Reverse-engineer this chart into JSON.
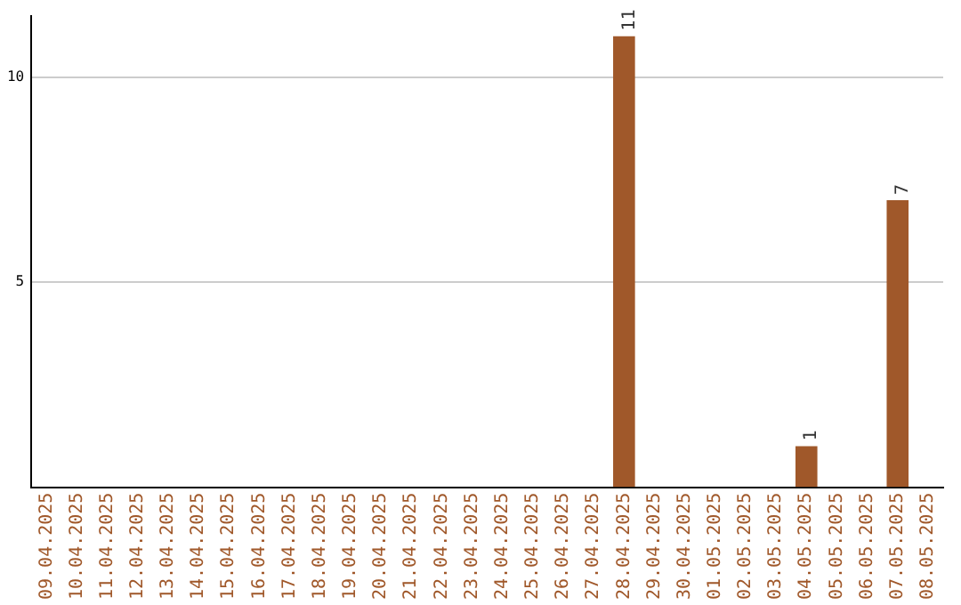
{
  "chart_data": {
    "type": "bar",
    "categories": [
      "09.04.2025",
      "10.04.2025",
      "11.04.2025",
      "12.04.2025",
      "13.04.2025",
      "14.04.2025",
      "15.04.2025",
      "16.04.2025",
      "17.04.2025",
      "18.04.2025",
      "19.04.2025",
      "20.04.2025",
      "21.04.2025",
      "22.04.2025",
      "23.04.2025",
      "24.04.2025",
      "25.04.2025",
      "26.04.2025",
      "27.04.2025",
      "28.04.2025",
      "29.04.2025",
      "30.04.2025",
      "01.05.2025",
      "02.05.2025",
      "03.05.2025",
      "04.05.2025",
      "05.05.2025",
      "06.05.2025",
      "07.05.2025",
      "08.05.2025"
    ],
    "values": [
      0,
      0,
      0,
      0,
      0,
      0,
      0,
      0,
      0,
      0,
      0,
      0,
      0,
      0,
      0,
      0,
      0,
      0,
      0,
      11,
      0,
      0,
      0,
      0,
      0,
      1,
      0,
      0,
      7,
      0
    ],
    "value_labels": [
      null,
      null,
      null,
      null,
      null,
      null,
      null,
      null,
      null,
      null,
      null,
      null,
      null,
      null,
      null,
      null,
      null,
      null,
      null,
      "11",
      null,
      null,
      null,
      null,
      null,
      "1",
      null,
      null,
      "7",
      null
    ],
    "color": "#a0582a",
    "ylim": [
      0,
      11.5
    ],
    "yticks": [
      5,
      10
    ],
    "grid": "y",
    "legend": false
  }
}
